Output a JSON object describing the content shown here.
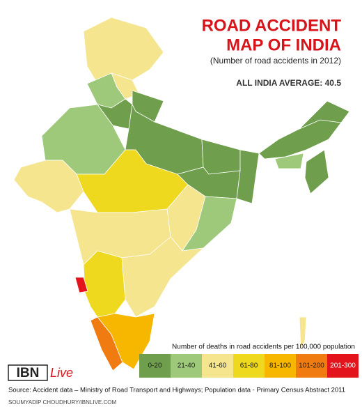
{
  "title": [
    "ROAD ACCIDENT",
    "MAP OF INDIA"
  ],
  "subtitle": "(Number of road accidents in 2012)",
  "average": "ALL INDIA AVERAGE: 40.5",
  "legend": {
    "title": "Number of deaths in road accidents per 100,000 population",
    "items": [
      {
        "label": "0-20",
        "color": "#6f9e4d"
      },
      {
        "label": "21-40",
        "color": "#9fc97a"
      },
      {
        "label": "41-60",
        "color": "#f4e58e"
      },
      {
        "label": "61-80",
        "color": "#eed91e"
      },
      {
        "label": "81-100",
        "color": "#f7b600"
      },
      {
        "label": "101-200",
        "color": "#f07b10"
      },
      {
        "label": "201-300",
        "color": "#e3141b"
      }
    ]
  },
  "logo": {
    "mark": "IBN",
    "word": "Live"
  },
  "source": "Source: Accident data – Ministry of Road Transport and Highways; Population data - Primary Census Abstract 2011",
  "credit": "SOUMYADIP CHOUDHURY/IBNLIVE.COM"
}
